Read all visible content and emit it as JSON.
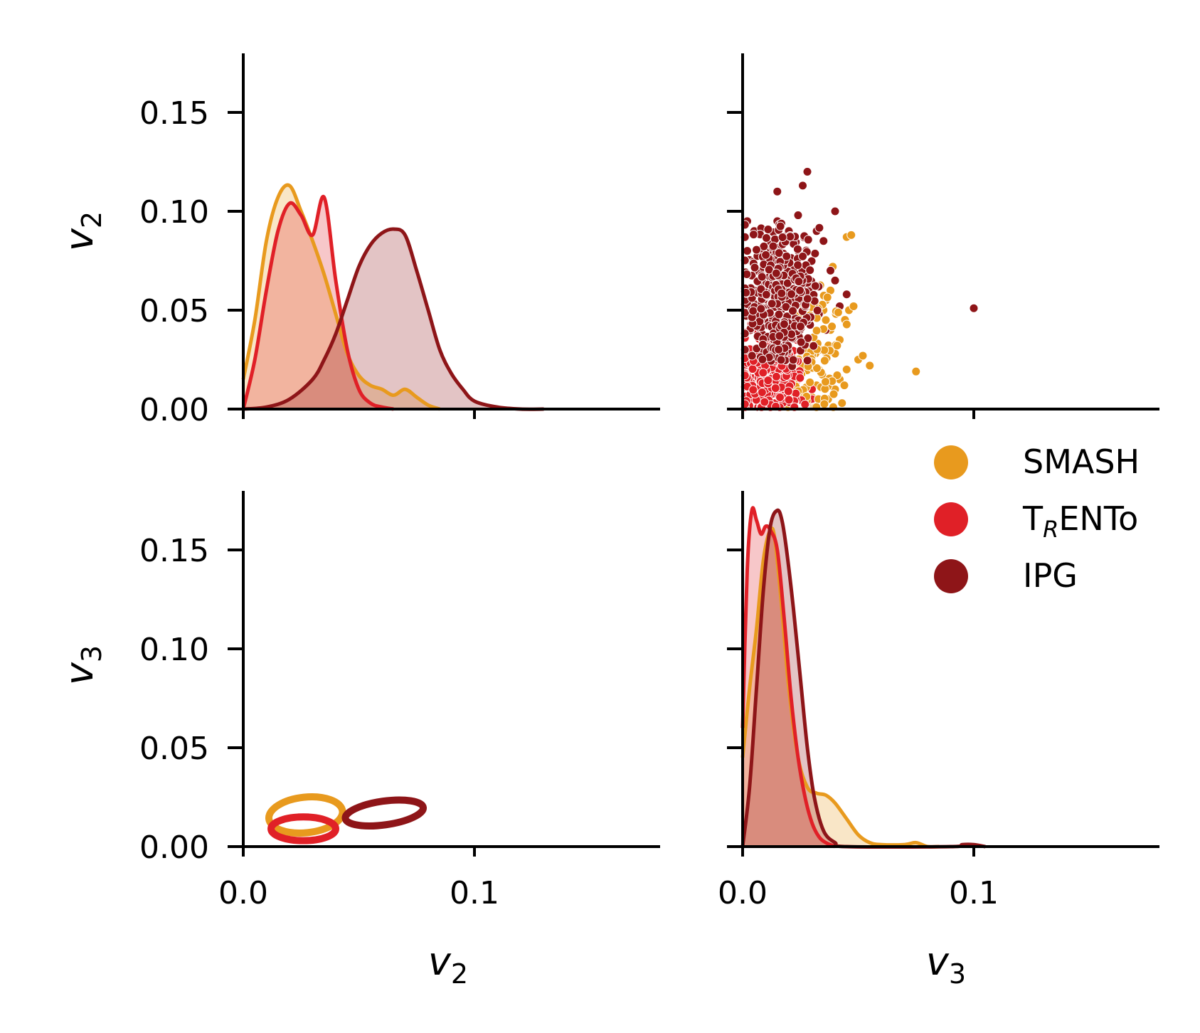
{
  "figure": {
    "type": "pairplot",
    "variables": [
      "v2",
      "v3"
    ]
  },
  "colors": {
    "SMASH": "#E89A1E",
    "TRENTo": "#E02027",
    "IPG": "#8E1518"
  },
  "axes": {
    "x_ticks": [
      {
        "value": 0.0,
        "label": "0.0"
      },
      {
        "value": 0.1,
        "label": "0.1"
      }
    ],
    "y_ticks": [
      {
        "value": 0.0,
        "label": "0.00"
      },
      {
        "value": 0.05,
        "label": "0.05"
      },
      {
        "value": 0.1,
        "label": "0.10"
      },
      {
        "value": 0.15,
        "label": "0.15"
      }
    ],
    "xlabels": [
      {
        "base": "v",
        "sub": "2"
      },
      {
        "base": "v",
        "sub": "3"
      }
    ],
    "ylabels": [
      {
        "base": "v",
        "sub": "2"
      },
      {
        "base": "v",
        "sub": "3"
      }
    ]
  },
  "legend": {
    "placement": "right, between rows",
    "items": [
      {
        "key": "SMASH",
        "label": "SMASH"
      },
      {
        "key": "TRENTo",
        "label_main": "T",
        "label_sub": "R",
        "label_tail": "ENTo"
      },
      {
        "key": "IPG",
        "label": "IPG"
      }
    ]
  },
  "chart_data": [
    {
      "panel": "v2-v2 (top-left)",
      "type": "area",
      "xlabel": "v2",
      "ylabel": "v2",
      "xlim": [
        0,
        0.18
      ],
      "ylim": [
        0,
        0.18
      ],
      "series": [
        {
          "name": "SMASH",
          "x": [
            0,
            0.005,
            0.01,
            0.015,
            0.02,
            0.025,
            0.03,
            0.035,
            0.04,
            0.045,
            0.05,
            0.055,
            0.06,
            0.065,
            0.07,
            0.075,
            0.08,
            0.085
          ],
          "y": [
            0.015,
            0.045,
            0.085,
            0.107,
            0.113,
            0.1,
            0.085,
            0.068,
            0.048,
            0.028,
            0.017,
            0.012,
            0.01,
            0.007,
            0.01,
            0.006,
            0.002,
            0.0
          ]
        },
        {
          "name": "TRENTo",
          "x": [
            0,
            0.005,
            0.01,
            0.015,
            0.02,
            0.025,
            0.03,
            0.035,
            0.04,
            0.045,
            0.05,
            0.055,
            0.06,
            0.065
          ],
          "y": [
            0.0,
            0.025,
            0.06,
            0.09,
            0.104,
            0.098,
            0.088,
            0.107,
            0.065,
            0.03,
            0.01,
            0.003,
            0.001,
            0.0
          ]
        },
        {
          "name": "IPG",
          "x": [
            0,
            0.01,
            0.02,
            0.03,
            0.035,
            0.04,
            0.045,
            0.05,
            0.055,
            0.06,
            0.065,
            0.07,
            0.075,
            0.08,
            0.085,
            0.09,
            0.095,
            0.1,
            0.11,
            0.12,
            0.13
          ],
          "y": [
            0.0,
            0.001,
            0.005,
            0.015,
            0.025,
            0.038,
            0.055,
            0.072,
            0.083,
            0.089,
            0.091,
            0.088,
            0.07,
            0.05,
            0.03,
            0.018,
            0.01,
            0.004,
            0.001,
            0.0,
            0.0
          ]
        }
      ]
    },
    {
      "panel": "v3-v2 (top-right)",
      "type": "scatter",
      "xlabel": "v3",
      "ylabel": "v2",
      "xlim": [
        0,
        0.18
      ],
      "ylim": [
        0,
        0.18
      ],
      "series": [
        {
          "name": "SMASH",
          "points": [
            [
              0.045,
              0.087
            ],
            [
              0.047,
              0.088
            ],
            [
              0.046,
              0.05
            ],
            [
              0.048,
              0.052
            ],
            [
              0.05,
              0.025
            ],
            [
              0.052,
              0.027
            ],
            [
              0.055,
              0.022
            ],
            [
              0.045,
              0.02
            ],
            [
              0.04,
              0.028
            ],
            [
              0.042,
              0.035
            ],
            [
              0.038,
              0.04
            ],
            [
              0.036,
              0.045
            ],
            [
              0.035,
              0.05
            ],
            [
              0.038,
              0.06
            ],
            [
              0.04,
              0.065
            ],
            [
              0.042,
              0.015
            ],
            [
              0.044,
              0.012
            ],
            [
              0.04,
              0.01
            ],
            [
              0.037,
              0.005
            ],
            [
              0.043,
              0.003
            ],
            [
              0.075,
              0.019
            ],
            [
              0.034,
              0.03
            ],
            [
              0.033,
              0.02
            ],
            [
              0.032,
              0.012
            ],
            [
              0.03,
              0.006
            ],
            [
              0.036,
              0.055
            ],
            [
              0.039,
              0.072
            ]
          ]
        },
        {
          "name": "TRENTo",
          "points": [
            [
              0.002,
              0.002
            ],
            [
              0.005,
              0.005
            ],
            [
              0.01,
              0.01
            ],
            [
              0.015,
              0.015
            ],
            [
              0.02,
              0.02
            ],
            [
              0.025,
              0.025
            ],
            [
              0.03,
              0.01
            ],
            [
              0.028,
              0.003
            ],
            [
              0.008,
              0.02
            ],
            [
              0.012,
              0.028
            ],
            [
              0.018,
              0.008
            ],
            [
              0.022,
              0.003
            ],
            [
              0.004,
              0.03
            ],
            [
              0.006,
              0.04
            ],
            [
              0.003,
              0.05
            ],
            [
              0.016,
              0.035
            ],
            [
              0.024,
              0.015
            ],
            [
              0.026,
              0.022
            ],
            [
              0.014,
              0.003
            ],
            [
              0.009,
              0.015
            ],
            [
              0.03,
              0.005
            ],
            [
              0.02,
              0.03
            ]
          ]
        },
        {
          "name": "IPG",
          "points": [
            [
              0.002,
              0.08
            ],
            [
              0.005,
              0.09
            ],
            [
              0.012,
              0.082
            ],
            [
              0.015,
              0.095
            ],
            [
              0.02,
              0.09
            ],
            [
              0.024,
              0.098
            ],
            [
              0.028,
              0.12
            ],
            [
              0.026,
              0.113
            ],
            [
              0.015,
              0.11
            ],
            [
              0.04,
              0.1
            ],
            [
              0.035,
              0.085
            ],
            [
              0.03,
              0.075
            ],
            [
              0.038,
              0.07
            ],
            [
              0.04,
              0.065
            ],
            [
              0.045,
              0.058
            ],
            [
              0.042,
              0.052
            ],
            [
              0.1,
              0.051
            ],
            [
              0.002,
              0.095
            ],
            [
              0.01,
              0.075
            ],
            [
              0.018,
              0.065
            ],
            [
              0.022,
              0.055
            ],
            [
              0.025,
              0.04
            ],
            [
              0.008,
              0.05
            ],
            [
              0.005,
              0.06
            ],
            [
              0.012,
              0.045
            ],
            [
              0.03,
              0.06
            ],
            [
              0.033,
              0.048
            ],
            [
              0.036,
              0.04
            ],
            [
              0.028,
              0.03
            ],
            [
              0.016,
              0.055
            ],
            [
              0.02,
              0.07
            ],
            [
              0.006,
              0.07
            ],
            [
              0.003,
              0.04
            ],
            [
              0.014,
              0.035
            ],
            [
              0.024,
              0.08
            ],
            [
              0.032,
              0.09
            ]
          ]
        }
      ]
    },
    {
      "panel": "v2-v3 (bottom-left)",
      "type": "contour",
      "xlabel": "v2",
      "ylabel": "v3",
      "xlim": [
        0,
        0.18
      ],
      "ylim": [
        0,
        0.18
      ],
      "series": [
        {
          "name": "SMASH",
          "center": [
            0.027,
            0.016
          ],
          "half_widths": [
            0.016,
            0.009
          ]
        },
        {
          "name": "TRENTo",
          "center": [
            0.026,
            0.009
          ],
          "half_widths": [
            0.014,
            0.006
          ]
        },
        {
          "name": "IPG",
          "center": [
            0.061,
            0.017
          ],
          "half_widths": [
            0.017,
            0.006
          ]
        }
      ]
    },
    {
      "panel": "v3-v3 (bottom-right)",
      "type": "area",
      "xlabel": "v3",
      "ylabel": "v3",
      "xlim": [
        0,
        0.18
      ],
      "ylim": [
        0,
        0.18
      ],
      "series": [
        {
          "name": "SMASH",
          "x": [
            0,
            0.003,
            0.006,
            0.009,
            0.012,
            0.014,
            0.017,
            0.02,
            0.024,
            0.028,
            0.032,
            0.036,
            0.04,
            0.045,
            0.05,
            0.055,
            0.06,
            0.07,
            0.075,
            0.08,
            0.085
          ],
          "y": [
            0.045,
            0.08,
            0.11,
            0.145,
            0.16,
            0.155,
            0.12,
            0.08,
            0.045,
            0.03,
            0.027,
            0.026,
            0.022,
            0.014,
            0.006,
            0.002,
            0.001,
            0.001,
            0.002,
            0.0,
            0.0
          ]
        },
        {
          "name": "TRENTo",
          "x": [
            0,
            0.002,
            0.004,
            0.006,
            0.008,
            0.01,
            0.012,
            0.015,
            0.018,
            0.021,
            0.024,
            0.027,
            0.03,
            0.033,
            0.036,
            0.04
          ],
          "y": [
            0.06,
            0.14,
            0.17,
            0.165,
            0.158,
            0.162,
            0.16,
            0.15,
            0.115,
            0.075,
            0.045,
            0.025,
            0.012,
            0.005,
            0.002,
            0.0
          ]
        },
        {
          "name": "IPG",
          "x": [
            0,
            0.003,
            0.006,
            0.009,
            0.012,
            0.015,
            0.017,
            0.019,
            0.022,
            0.025,
            0.028,
            0.031,
            0.035,
            0.04,
            0.045,
            0.09,
            0.095,
            0.1,
            0.105
          ],
          "y": [
            0.0,
            0.03,
            0.08,
            0.13,
            0.162,
            0.17,
            0.165,
            0.15,
            0.12,
            0.085,
            0.05,
            0.025,
            0.008,
            0.002,
            0.0,
            0.0,
            0.001,
            0.001,
            0.0
          ]
        }
      ]
    }
  ]
}
